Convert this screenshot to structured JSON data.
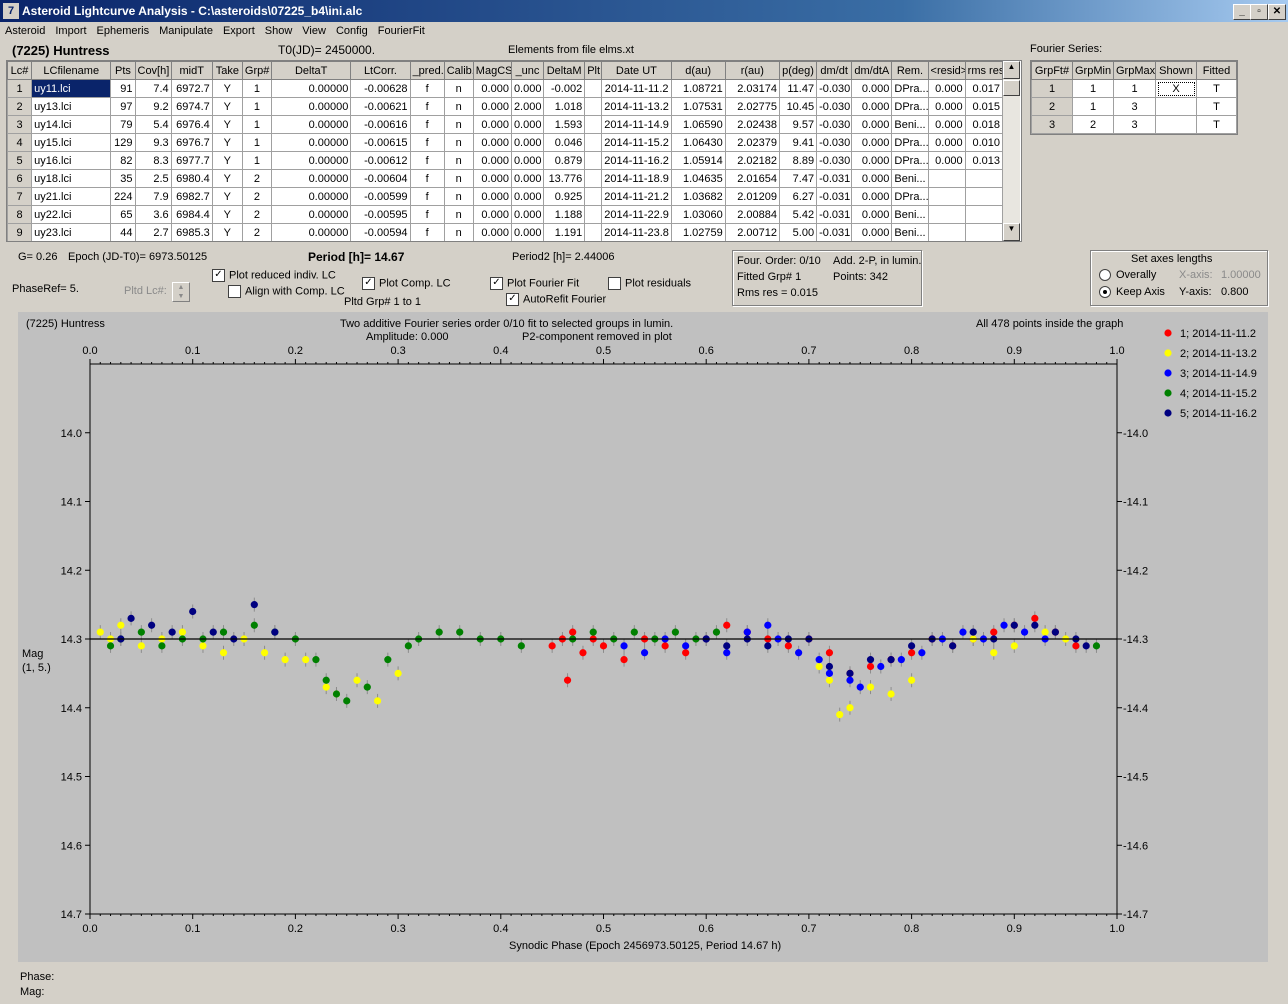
{
  "window": {
    "title": "Asteroid Lightcurve Analysis - C:\\asteroids\\07225_b4\\ini.alc"
  },
  "menu": [
    "Asteroid",
    "Import",
    "Ephemeris",
    "Manipulate",
    "Export",
    "Show",
    "View",
    "Config",
    "FourierFit"
  ],
  "header": {
    "asteroid": "(7225) Huntress",
    "t0": "T0(JD)= 2450000.",
    "elements": "Elements from file elms.xt"
  },
  "lc_table": {
    "columns": [
      "Lc#",
      "LCfilename",
      "Pts",
      "Cov[h]",
      "midT",
      "Take",
      "Grp#",
      "DeltaT",
      "LtCorr.",
      "_pred.",
      "Calib.",
      "MagCS",
      "_unc",
      "DeltaM",
      "Plt",
      "Date UT",
      "d(au)",
      "r(au)",
      "p(deg)",
      "dm/dt",
      "dm/dtA",
      "Rem.",
      "<resid>",
      "rms res"
    ],
    "rows": [
      [
        "1",
        "uy11.lci",
        "91",
        "7.4",
        "6972.7",
        "Y",
        "1",
        "0.00000",
        "-0.00628",
        "f",
        "n",
        "0.000",
        "0.000",
        "-0.002",
        "",
        "2014-11-11.2",
        "1.08721",
        "2.03174",
        "11.47",
        "-0.030",
        "0.000",
        "DPra...",
        "0.000",
        "0.017"
      ],
      [
        "2",
        "uy13.lci",
        "97",
        "9.2",
        "6974.7",
        "Y",
        "1",
        "0.00000",
        "-0.00621",
        "f",
        "n",
        "0.000",
        "2.000",
        "1.018",
        "",
        "2014-11-13.2",
        "1.07531",
        "2.02775",
        "10.45",
        "-0.030",
        "0.000",
        "DPra...",
        "0.000",
        "0.015"
      ],
      [
        "3",
        "uy14.lci",
        "79",
        "5.4",
        "6976.4",
        "Y",
        "1",
        "0.00000",
        "-0.00616",
        "f",
        "n",
        "0.000",
        "0.000",
        "1.593",
        "",
        "2014-11-14.9",
        "1.06590",
        "2.02438",
        "9.57",
        "-0.030",
        "0.000",
        "Beni...",
        "0.000",
        "0.018"
      ],
      [
        "4",
        "uy15.lci",
        "129",
        "9.3",
        "6976.7",
        "Y",
        "1",
        "0.00000",
        "-0.00615",
        "f",
        "n",
        "0.000",
        "0.000",
        "0.046",
        "",
        "2014-11-15.2",
        "1.06430",
        "2.02379",
        "9.41",
        "-0.030",
        "0.000",
        "DPra...",
        "0.000",
        "0.010"
      ],
      [
        "5",
        "uy16.lci",
        "82",
        "8.3",
        "6977.7",
        "Y",
        "1",
        "0.00000",
        "-0.00612",
        "f",
        "n",
        "0.000",
        "0.000",
        "0.879",
        "",
        "2014-11-16.2",
        "1.05914",
        "2.02182",
        "8.89",
        "-0.030",
        "0.000",
        "DPra...",
        "0.000",
        "0.013"
      ],
      [
        "6",
        "uy18.lci",
        "35",
        "2.5",
        "6980.4",
        "Y",
        "2",
        "0.00000",
        "-0.00604",
        "f",
        "n",
        "0.000",
        "0.000",
        "13.776",
        "",
        "2014-11-18.9",
        "1.04635",
        "2.01654",
        "7.47",
        "-0.031",
        "0.000",
        "Beni...",
        "",
        ""
      ],
      [
        "7",
        "uy21.lci",
        "224",
        "7.9",
        "6982.7",
        "Y",
        "2",
        "0.00000",
        "-0.00599",
        "f",
        "n",
        "0.000",
        "0.000",
        "0.925",
        "",
        "2014-11-21.2",
        "1.03682",
        "2.01209",
        "6.27",
        "-0.031",
        "0.000",
        "DPra...",
        "",
        ""
      ],
      [
        "8",
        "uy22.lci",
        "65",
        "3.6",
        "6984.4",
        "Y",
        "2",
        "0.00000",
        "-0.00595",
        "f",
        "n",
        "0.000",
        "0.000",
        "1.188",
        "",
        "2014-11-22.9",
        "1.03060",
        "2.00884",
        "5.42",
        "-0.031",
        "0.000",
        "Beni...",
        "",
        ""
      ],
      [
        "9",
        "uy23.lci",
        "44",
        "2.7",
        "6985.3",
        "Y",
        "2",
        "0.00000",
        "-0.00594",
        "f",
        "n",
        "0.000",
        "0.000",
        "1.191",
        "",
        "2014-11-23.8",
        "1.02759",
        "2.00712",
        "5.00",
        "-0.031",
        "0.000",
        "Beni...",
        "",
        ""
      ]
    ]
  },
  "fourier_series": {
    "label": "Fourier Series:",
    "columns": [
      "GrpFt#",
      "GrpMin",
      "GrpMax",
      "Shown",
      "Fitted"
    ],
    "rows": [
      [
        "1",
        "1",
        "1",
        "X",
        "T"
      ],
      [
        "2",
        "1",
        "3",
        "",
        "T"
      ],
      [
        "3",
        "2",
        "3",
        "",
        "T"
      ]
    ]
  },
  "controls": {
    "g": "G= 0.26",
    "epoch": "Epoch (JD-T0)= 6973.50125",
    "period": "Period [h]= 14.67",
    "period2": "Period2 [h]= 2.44006",
    "phaseref": "PhaseRef= 5.",
    "pltd_lc": "Pltd Lc#:",
    "plot_reduced": "Plot reduced indiv. LC",
    "align": "Align with Comp. LC",
    "plot_comp": "Plot Comp. LC",
    "pltd_grp": "Pltd Grp#  1   to   1",
    "plot_fourier": "Plot Fourier Fit",
    "autorefit": "AutoRefit Fourier",
    "plot_residuals": "Plot residuals",
    "four_order": "Four. Order:  0/10",
    "add": "Add. 2-P, in lumin.",
    "fitted_grp": "Fitted Grp# 1",
    "points": "Points: 342",
    "rms": "Rms res     = 0.015",
    "axes_title": "Set axes lengths",
    "overally": "Overally",
    "keep_axis": "Keep Axis",
    "xaxis_label": "X-axis:",
    "xaxis_val": "1.00000",
    "yaxis_label": "Y-axis:",
    "yaxis_val": "0.800"
  },
  "plot_header": {
    "name": "(7225) Huntress",
    "line1": "Two additive Fourier series order 0/10 fit to selected groups in lumin.",
    "line2a": "Amplitude: 0.000",
    "line2b": "P2-component removed in plot",
    "inside": "All 478 points inside the graph",
    "ylabel1": "Mag",
    "ylabel2": "(1, 5.)"
  },
  "status": {
    "phase": "Phase:",
    "mag": "Mag:"
  },
  "chart_data": {
    "type": "scatter",
    "xlabel": "Synodic Phase (Epoch 2456973.50125, Period 14.67 h)",
    "ylabel": "Mag",
    "xlim": [
      0.0,
      1.0
    ],
    "ylim": [
      14.7,
      13.9
    ],
    "xticks": [
      "0.0",
      "0.1",
      "0.2",
      "0.3",
      "0.4",
      "0.5",
      "0.6",
      "0.7",
      "0.8",
      "0.9",
      "1.0"
    ],
    "yticks": [
      "14.0",
      "14.1",
      "14.2",
      "14.3",
      "14.4",
      "14.5",
      "14.6",
      "14.7"
    ],
    "fit_line": 14.3,
    "series": [
      {
        "name": "1; 2014-11-11.2",
        "color": "#ff0000",
        "points": [
          [
            0.45,
            14.31
          ],
          [
            0.46,
            14.3
          ],
          [
            0.465,
            14.36
          ],
          [
            0.47,
            14.29
          ],
          [
            0.48,
            14.32
          ],
          [
            0.49,
            14.3
          ],
          [
            0.5,
            14.31
          ],
          [
            0.52,
            14.33
          ],
          [
            0.54,
            14.3
          ],
          [
            0.56,
            14.31
          ],
          [
            0.58,
            14.32
          ],
          [
            0.6,
            14.3
          ],
          [
            0.62,
            14.28
          ],
          [
            0.64,
            14.29
          ],
          [
            0.66,
            14.3
          ],
          [
            0.68,
            14.31
          ],
          [
            0.7,
            14.3
          ],
          [
            0.72,
            14.32
          ],
          [
            0.74,
            14.35
          ],
          [
            0.76,
            14.34
          ],
          [
            0.78,
            14.33
          ],
          [
            0.8,
            14.32
          ],
          [
            0.82,
            14.3
          ],
          [
            0.84,
            14.31
          ],
          [
            0.86,
            14.3
          ],
          [
            0.88,
            14.29
          ],
          [
            0.9,
            14.28
          ],
          [
            0.92,
            14.27
          ],
          [
            0.94,
            14.29
          ],
          [
            0.96,
            14.31
          ]
        ]
      },
      {
        "name": "2; 2014-11-13.2",
        "color": "#ffff00",
        "points": [
          [
            0.01,
            14.29
          ],
          [
            0.02,
            14.3
          ],
          [
            0.03,
            14.28
          ],
          [
            0.05,
            14.31
          ],
          [
            0.07,
            14.3
          ],
          [
            0.09,
            14.29
          ],
          [
            0.11,
            14.31
          ],
          [
            0.13,
            14.32
          ],
          [
            0.15,
            14.3
          ],
          [
            0.17,
            14.32
          ],
          [
            0.19,
            14.33
          ],
          [
            0.21,
            14.33
          ],
          [
            0.23,
            14.37
          ],
          [
            0.24,
            14.38
          ],
          [
            0.26,
            14.36
          ],
          [
            0.28,
            14.39
          ],
          [
            0.3,
            14.35
          ],
          [
            0.71,
            14.34
          ],
          [
            0.72,
            14.36
          ],
          [
            0.73,
            14.41
          ],
          [
            0.74,
            14.4
          ],
          [
            0.76,
            14.37
          ],
          [
            0.78,
            14.38
          ],
          [
            0.8,
            14.36
          ],
          [
            0.86,
            14.3
          ],
          [
            0.88,
            14.32
          ],
          [
            0.9,
            14.31
          ],
          [
            0.93,
            14.29
          ],
          [
            0.95,
            14.3
          ]
        ]
      },
      {
        "name": "3; 2014-11-14.9",
        "color": "#0000ff",
        "points": [
          [
            0.52,
            14.31
          ],
          [
            0.54,
            14.32
          ],
          [
            0.56,
            14.3
          ],
          [
            0.58,
            14.31
          ],
          [
            0.6,
            14.3
          ],
          [
            0.62,
            14.32
          ],
          [
            0.64,
            14.29
          ],
          [
            0.66,
            14.28
          ],
          [
            0.67,
            14.3
          ],
          [
            0.69,
            14.32
          ],
          [
            0.71,
            14.33
          ],
          [
            0.72,
            14.35
          ],
          [
            0.74,
            14.36
          ],
          [
            0.75,
            14.37
          ],
          [
            0.77,
            14.34
          ],
          [
            0.79,
            14.33
          ],
          [
            0.81,
            14.32
          ],
          [
            0.83,
            14.3
          ],
          [
            0.85,
            14.29
          ],
          [
            0.87,
            14.3
          ],
          [
            0.89,
            14.28
          ],
          [
            0.91,
            14.29
          ],
          [
            0.93,
            14.3
          ]
        ]
      },
      {
        "name": "4; 2014-11-15.2",
        "color": "#008000",
        "points": [
          [
            0.02,
            14.31
          ],
          [
            0.03,
            14.3
          ],
          [
            0.05,
            14.29
          ],
          [
            0.07,
            14.31
          ],
          [
            0.09,
            14.3
          ],
          [
            0.11,
            14.3
          ],
          [
            0.13,
            14.29
          ],
          [
            0.16,
            14.28
          ],
          [
            0.18,
            14.29
          ],
          [
            0.2,
            14.3
          ],
          [
            0.22,
            14.33
          ],
          [
            0.23,
            14.36
          ],
          [
            0.24,
            14.38
          ],
          [
            0.25,
            14.39
          ],
          [
            0.27,
            14.37
          ],
          [
            0.29,
            14.33
          ],
          [
            0.31,
            14.31
          ],
          [
            0.32,
            14.3
          ],
          [
            0.34,
            14.29
          ],
          [
            0.36,
            14.29
          ],
          [
            0.38,
            14.3
          ],
          [
            0.4,
            14.3
          ],
          [
            0.42,
            14.31
          ],
          [
            0.47,
            14.3
          ],
          [
            0.49,
            14.29
          ],
          [
            0.51,
            14.3
          ],
          [
            0.53,
            14.29
          ],
          [
            0.55,
            14.3
          ],
          [
            0.57,
            14.29
          ],
          [
            0.59,
            14.3
          ],
          [
            0.61,
            14.29
          ],
          [
            0.98,
            14.31
          ]
        ]
      },
      {
        "name": "5; 2014-11-16.2",
        "color": "#000080",
        "points": [
          [
            0.03,
            14.3
          ],
          [
            0.04,
            14.27
          ],
          [
            0.06,
            14.28
          ],
          [
            0.08,
            14.29
          ],
          [
            0.1,
            14.26
          ],
          [
            0.12,
            14.29
          ],
          [
            0.14,
            14.3
          ],
          [
            0.16,
            14.25
          ],
          [
            0.18,
            14.29
          ],
          [
            0.6,
            14.3
          ],
          [
            0.62,
            14.31
          ],
          [
            0.64,
            14.3
          ],
          [
            0.66,
            14.31
          ],
          [
            0.68,
            14.3
          ],
          [
            0.7,
            14.3
          ],
          [
            0.72,
            14.34
          ],
          [
            0.74,
            14.35
          ],
          [
            0.76,
            14.33
          ],
          [
            0.78,
            14.33
          ],
          [
            0.8,
            14.31
          ],
          [
            0.82,
            14.3
          ],
          [
            0.84,
            14.31
          ],
          [
            0.86,
            14.29
          ],
          [
            0.88,
            14.3
          ],
          [
            0.9,
            14.28
          ],
          [
            0.92,
            14.28
          ],
          [
            0.94,
            14.29
          ],
          [
            0.96,
            14.3
          ],
          [
            0.97,
            14.31
          ]
        ]
      }
    ]
  }
}
